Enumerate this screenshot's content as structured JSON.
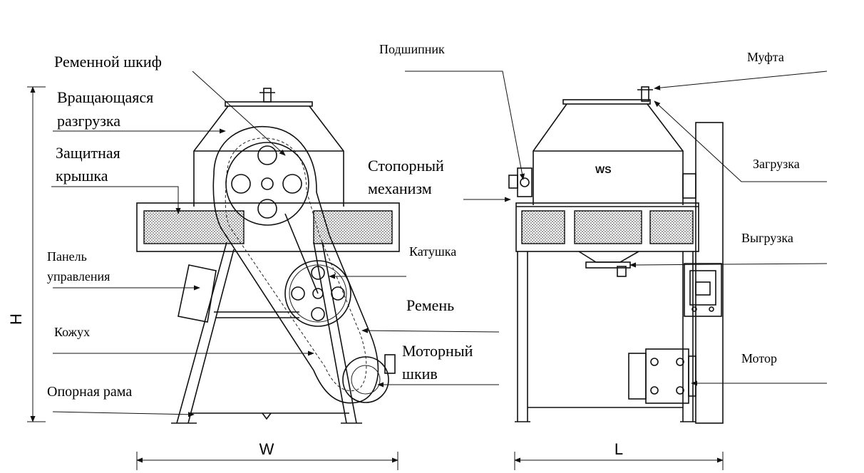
{
  "labels": {
    "pulley": "Ременной шкиф",
    "rot_discharge_1": "Вращающаяся",
    "rot_discharge_2": "разгрузка",
    "cover_1": "Защитная",
    "cover_2": "крышка",
    "panel_1": "Панель",
    "panel_2": "управления",
    "casing": "Кожух",
    "frame": "Опорная рама",
    "bearing": "Подшипник",
    "stopper_1": "Стопорный",
    "stopper_2": "механизм",
    "coil": "Катушка",
    "belt": "Ремень",
    "motor_pulley_1": "Моторный",
    "motor_pulley_2": "шкив",
    "coupling": "Муфта",
    "loading": "Загрузка",
    "unloading": "Выгрузка",
    "motor": "Мотор"
  },
  "dimensions": {
    "height": "H",
    "width": "W",
    "length": "L"
  },
  "logo": "WS"
}
